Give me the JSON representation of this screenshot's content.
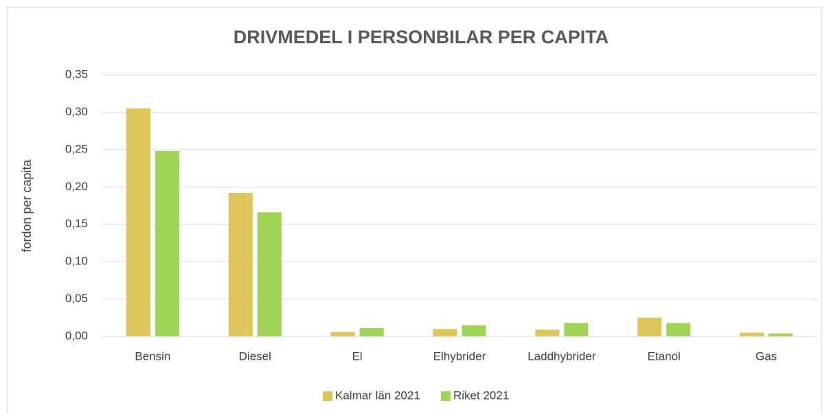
{
  "chart_data": {
    "type": "bar",
    "title": "DRIVMEDEL I PERSONBILAR PER CAPITA",
    "y_label": "fordon per capita",
    "categories": [
      "Bensin",
      "Diesel",
      "El",
      "Elhybrider",
      "Laddhybrider",
      "Etanol",
      "Gas"
    ],
    "series": [
      {
        "name": "Kalmar län 2021",
        "color": "#dcc55a",
        "values": [
          0.305,
          0.192,
          0.006,
          0.01,
          0.009,
          0.025,
          0.005
        ]
      },
      {
        "name": "Riket 2021",
        "color": "#9fd456",
        "values": [
          0.248,
          0.166,
          0.011,
          0.015,
          0.018,
          0.018,
          0.004
        ]
      }
    ],
    "ylim": [
      0,
      0.35
    ],
    "yticks": [
      {
        "value": 0,
        "label": "0,00"
      },
      {
        "value": 0.05,
        "label": "0,05"
      },
      {
        "value": 0.1,
        "label": "0,10"
      },
      {
        "value": 0.15,
        "label": "0,15"
      },
      {
        "value": 0.2,
        "label": "0,20"
      },
      {
        "value": 0.25,
        "label": "0,25"
      },
      {
        "value": 0.3,
        "label": "0,30"
      },
      {
        "value": 0.35,
        "label": "0,35"
      }
    ],
    "grid": true,
    "legend": "bottom"
  }
}
